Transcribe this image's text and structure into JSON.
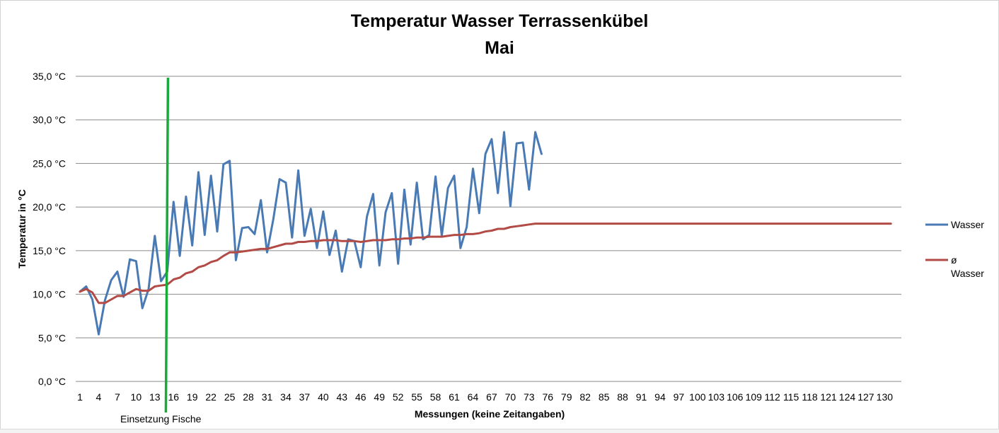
{
  "chart_data": {
    "type": "line",
    "title": "Temperatur Wasser Terrassenkübel",
    "subtitle": "Mai",
    "xlabel": "Messungen (keine Zeitangaben)",
    "ylabel": "Temperatur in °C",
    "ylim": [
      0,
      35
    ],
    "xlim": [
      1,
      132
    ],
    "y_ticks": [
      0,
      5,
      10,
      15,
      20,
      25,
      30,
      35
    ],
    "y_tick_labels": [
      "0,0 °C",
      "5,0 °C",
      "10,0 °C",
      "15,0 °C",
      "20,0 °C",
      "25,0 °C",
      "30,0 °C",
      "35,0 °C"
    ],
    "x_tick_labels": [
      "1",
      "4",
      "7",
      "10",
      "13",
      "16",
      "19",
      "22",
      "25",
      "28",
      "31",
      "34",
      "37",
      "40",
      "43",
      "46",
      "49",
      "52",
      "55",
      "58",
      "61",
      "64",
      "67",
      "70",
      "73",
      "76",
      "79",
      "82",
      "85",
      "88",
      "91",
      "94",
      "97",
      "100",
      "103",
      "106",
      "109",
      "112",
      "115",
      "118",
      "121",
      "124",
      "127",
      "130"
    ],
    "grid": true,
    "legend_position": "right",
    "series": [
      {
        "name": "Wasser",
        "color": "#4a7ab4",
        "x_start": 1,
        "values": [
          10.3,
          10.9,
          9.4,
          5.4,
          9.3,
          11.6,
          12.6,
          9.7,
          14.0,
          13.8,
          8.4,
          10.6,
          16.7,
          11.5,
          12.6,
          20.6,
          14.4,
          21.2,
          15.6,
          24.0,
          16.8,
          23.6,
          17.2,
          24.9,
          25.3,
          13.9,
          17.6,
          17.7,
          16.9,
          20.8,
          14.8,
          18.6,
          23.2,
          22.8,
          16.5,
          24.2,
          16.7,
          19.8,
          15.3,
          19.5,
          14.5,
          17.3,
          12.6,
          16.3,
          16.1,
          13.1,
          18.9,
          21.5,
          13.3,
          19.4,
          21.6,
          13.5,
          22.0,
          15.7,
          22.8,
          16.3,
          16.8,
          23.5,
          16.7,
          22.2,
          23.6,
          15.3,
          17.7,
          24.4,
          19.3,
          26.1,
          27.8,
          21.6,
          28.6,
          20.1,
          27.3,
          27.4,
          22.0,
          28.6,
          26.1
        ]
      },
      {
        "name": "ø Wasser",
        "legend_lines": [
          "ø",
          "Wasser"
        ],
        "color": "#b24a46",
        "x_start": 1,
        "values": [
          10.3,
          10.6,
          10.2,
          9.0,
          9.0,
          9.4,
          9.8,
          9.8,
          10.2,
          10.6,
          10.4,
          10.4,
          10.9,
          11.0,
          11.1,
          11.7,
          11.9,
          12.4,
          12.6,
          13.1,
          13.3,
          13.7,
          13.9,
          14.4,
          14.8,
          14.8,
          14.9,
          15.0,
          15.1,
          15.2,
          15.2,
          15.4,
          15.6,
          15.8,
          15.8,
          16.0,
          16.0,
          16.1,
          16.1,
          16.2,
          16.2,
          16.2,
          16.1,
          16.1,
          16.1,
          16.0,
          16.1,
          16.2,
          16.2,
          16.2,
          16.3,
          16.3,
          16.4,
          16.4,
          16.5,
          16.5,
          16.6,
          16.6,
          16.6,
          16.7,
          16.8,
          16.8,
          16.9,
          16.9,
          17.0,
          17.2,
          17.3,
          17.5,
          17.5,
          17.7,
          17.8,
          17.9,
          18.0,
          18.1,
          18.1
        ],
        "flat_tail_to": 131,
        "flat_tail_value": 18.1
      }
    ],
    "annotations": [
      {
        "type": "vertical_line",
        "x": 15,
        "color": "#1aaa3c",
        "label": "Einsetzung  Fische"
      }
    ]
  }
}
